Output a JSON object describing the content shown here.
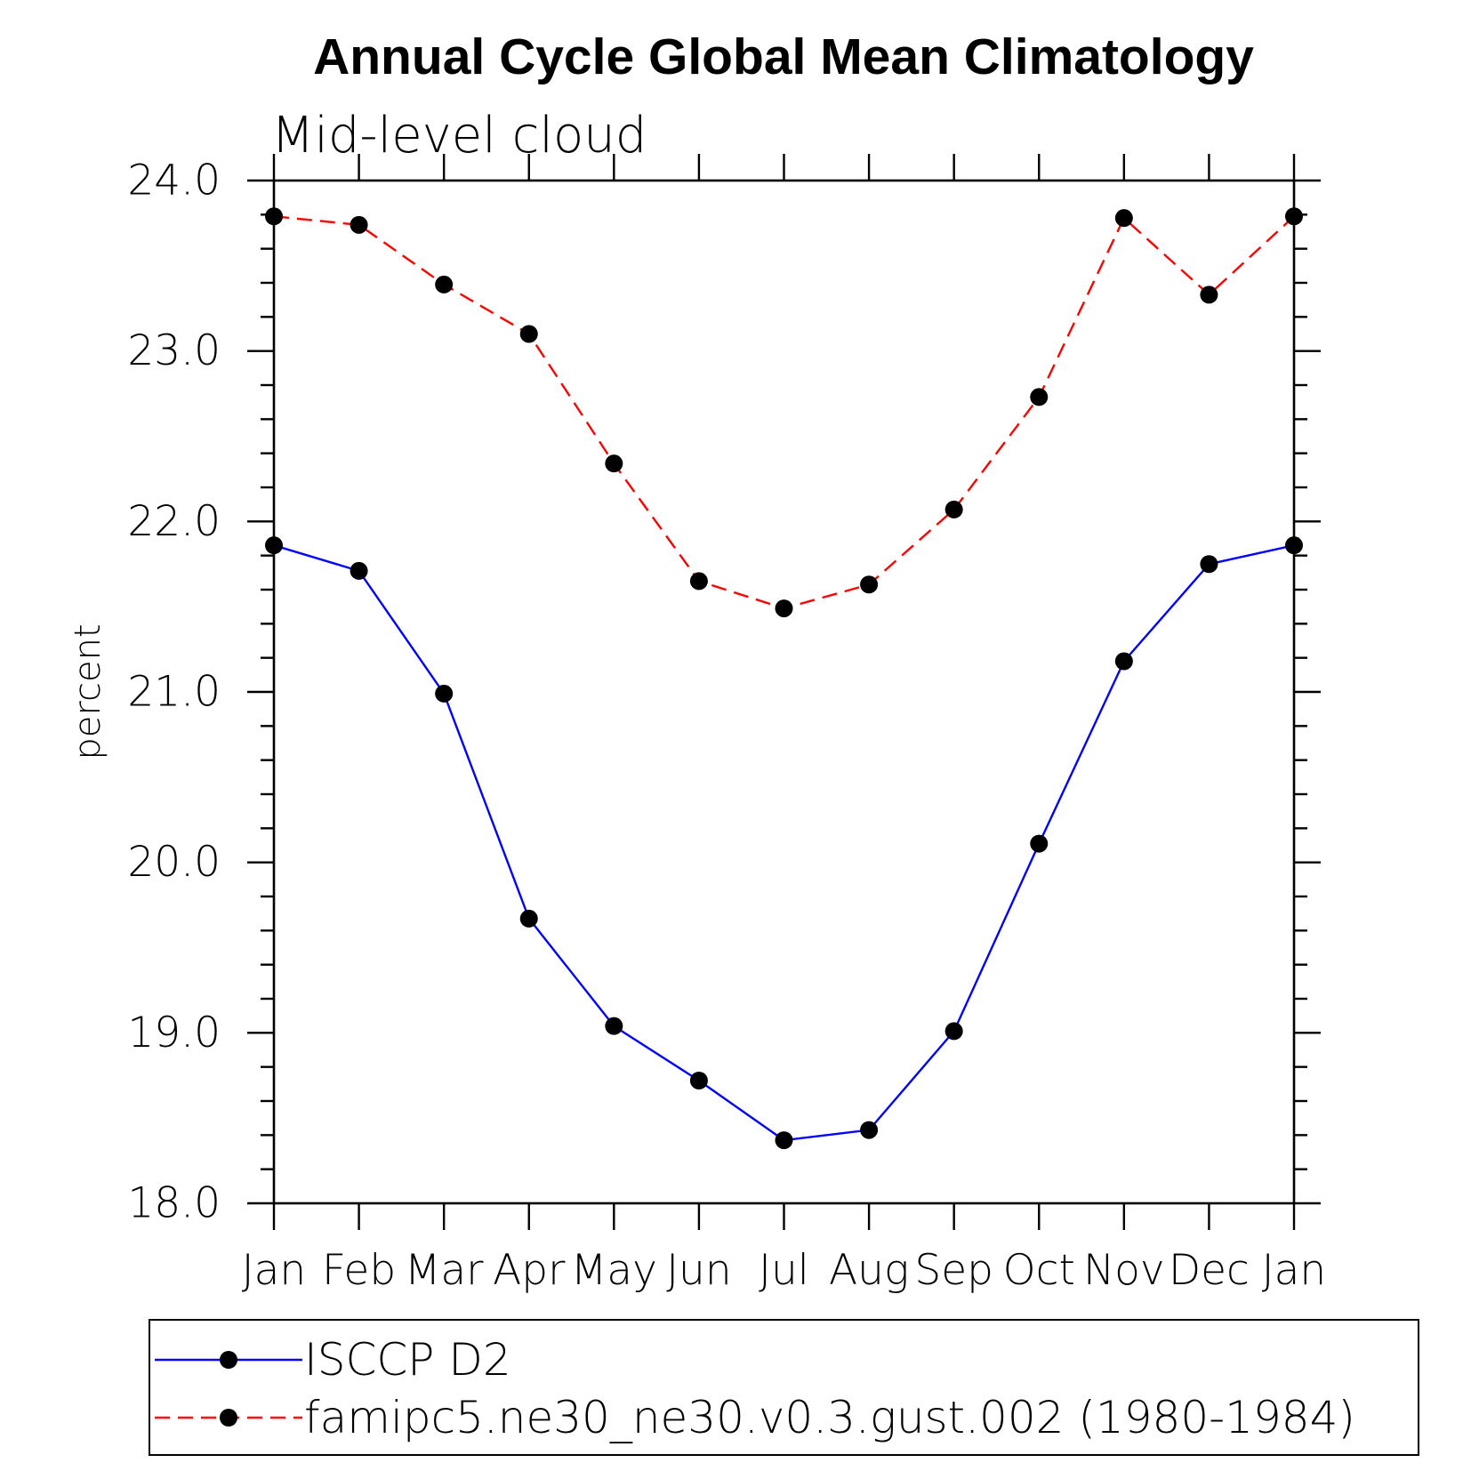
{
  "chart_data": {
    "type": "line",
    "title": "Annual Cycle Global Mean Climatology",
    "subtitle": "Mid-level cloud",
    "xlabel": "",
    "ylabel": "percent",
    "categories": [
      "Jan",
      "Feb",
      "Mar",
      "Apr",
      "May",
      "Jun",
      "Jul",
      "Aug",
      "Sep",
      "Oct",
      "Nov",
      "Dec",
      "Jan"
    ],
    "ylim": [
      18.0,
      24.0
    ],
    "yticks": [
      18,
      19,
      20,
      21,
      22,
      23,
      24
    ],
    "ytick_labels": [
      "18.0",
      "19.0",
      "20.0",
      "21.0",
      "22.0",
      "23.0",
      "24.0"
    ],
    "y_minor_step": 0.2,
    "grid": false,
    "legend_position": "bottom",
    "marker_color": "#000000",
    "series": [
      {
        "name": "ISCCP D2",
        "color": "#0000ff",
        "dashed": false,
        "values": [
          21.86,
          21.71,
          20.99,
          19.67,
          19.04,
          18.72,
          18.37,
          18.43,
          19.01,
          20.11,
          21.18,
          21.75,
          21.86
        ]
      },
      {
        "name": "famipc5.ne30_ne30.v0.3.gust.002 (1980-1984)",
        "color": "#ff0000",
        "dashed": true,
        "values": [
          23.79,
          23.74,
          23.39,
          23.1,
          22.34,
          21.65,
          21.49,
          21.63,
          22.07,
          22.73,
          23.78,
          23.33,
          23.79
        ]
      }
    ]
  }
}
